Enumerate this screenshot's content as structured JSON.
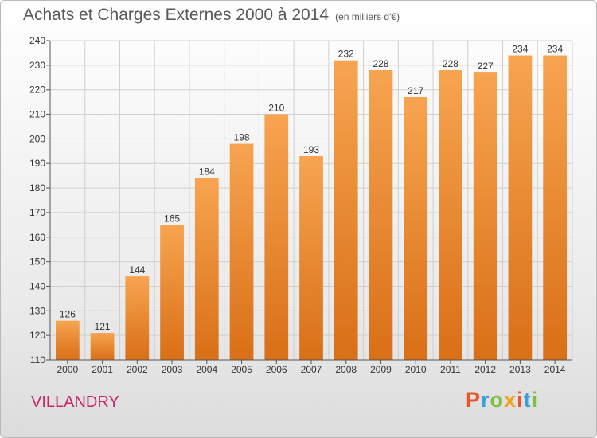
{
  "title": "Achats et Charges Externes 2000 à 2014",
  "unit": "(en milliers d'€)",
  "place": "VILLANDRY",
  "logo": {
    "text": "Proxiti",
    "colors": [
      "#e8552b",
      "#3aa0d8",
      "#7fbf3f",
      "#f2a11e"
    ]
  },
  "colors": {
    "bar_light": "#f7a450",
    "bar_dark": "#d96f17",
    "grid": "#cfcfcf",
    "axis": "#555555"
  },
  "chart_data": {
    "type": "bar",
    "categories": [
      "2000",
      "2001",
      "2002",
      "2003",
      "2004",
      "2005",
      "2006",
      "2007",
      "2008",
      "2009",
      "2010",
      "2011",
      "2012",
      "2013",
      "2014"
    ],
    "values": [
      126,
      121,
      144,
      165,
      184,
      198,
      210,
      193,
      232,
      228,
      217,
      228,
      227,
      234,
      234
    ],
    "ylim": [
      110,
      240
    ],
    "yticks": [
      110,
      120,
      130,
      140,
      150,
      160,
      170,
      180,
      190,
      200,
      210,
      220,
      230,
      240
    ],
    "grid": true
  }
}
